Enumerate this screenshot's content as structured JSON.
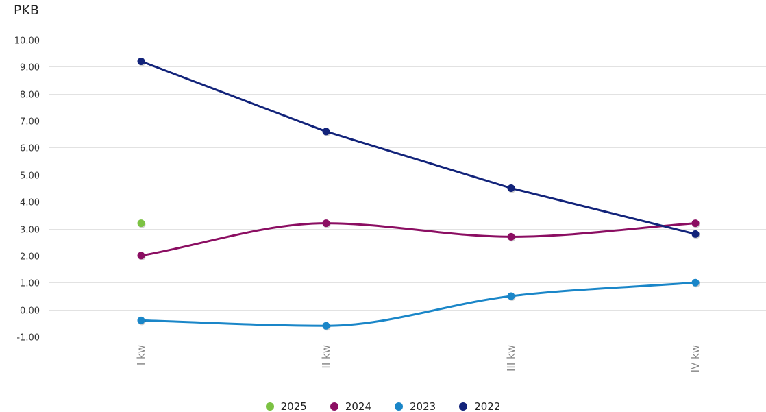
{
  "chart_data": {
    "type": "line",
    "title": "PKB",
    "xlabel": "",
    "ylabel": "",
    "categories": [
      "I kw",
      "II kw",
      "III kw",
      "IV kw"
    ],
    "ylim": [
      -1,
      10
    ],
    "yticks": [
      -1,
      0,
      1,
      2,
      3,
      4,
      5,
      6,
      7,
      8,
      9,
      10
    ],
    "ytick_labels": [
      "-1.00",
      "0.00",
      "1.00",
      "2.00",
      "3.00",
      "4.00",
      "5.00",
      "6.00",
      "7.00",
      "8.00",
      "9.00",
      "10.00"
    ],
    "grid": true,
    "legend_position": "bottom-center",
    "series": [
      {
        "name": "2025",
        "color": "#7cc243",
        "values": [
          3.2,
          null,
          null,
          null
        ]
      },
      {
        "name": "2024",
        "color": "#8b0e62",
        "values": [
          2.0,
          3.2,
          2.7,
          3.2
        ]
      },
      {
        "name": "2023",
        "color": "#1a86c8",
        "values": [
          -0.4,
          -0.6,
          0.5,
          1.0
        ]
      },
      {
        "name": "2022",
        "color": "#12237a",
        "values": [
          9.2,
          6.6,
          4.5,
          2.8
        ]
      }
    ]
  }
}
